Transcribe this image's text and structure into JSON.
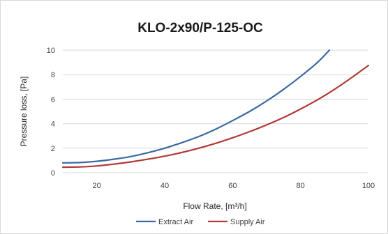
{
  "chart_data": {
    "type": "line",
    "title": "KLO-2x90/P-125-OC",
    "xlabel": "Flow Rate, [m³/h]",
    "ylabel": "Pressure loss, [Pa]",
    "xlim": [
      10,
      100
    ],
    "ylim": [
      0,
      10
    ],
    "xticks": [
      20,
      40,
      60,
      80,
      100
    ],
    "yticks": [
      0,
      2,
      4,
      6,
      8,
      10
    ],
    "grid": "horizontal",
    "legend": "bottom",
    "series": [
      {
        "name": "Extract Air",
        "color": "#3a6aa3",
        "x": [
          10,
          15,
          20,
          25,
          30,
          35,
          40,
          45,
          50,
          55,
          60,
          65,
          70,
          75,
          80,
          85,
          88.5
        ],
        "y": [
          0.8,
          0.83,
          0.93,
          1.1,
          1.32,
          1.63,
          2.0,
          2.45,
          2.95,
          3.55,
          4.25,
          5.0,
          5.85,
          6.8,
          7.85,
          9.0,
          10.0
        ]
      },
      {
        "name": "Supply Air",
        "color": "#b03a37",
        "x": [
          10,
          15,
          20,
          25,
          30,
          35,
          40,
          45,
          50,
          55,
          60,
          65,
          70,
          75,
          80,
          85,
          90,
          95,
          100
        ],
        "y": [
          0.45,
          0.47,
          0.55,
          0.7,
          0.88,
          1.1,
          1.35,
          1.65,
          2.0,
          2.4,
          2.85,
          3.35,
          3.9,
          4.5,
          5.2,
          5.95,
          6.8,
          7.75,
          8.75
        ]
      }
    ]
  }
}
